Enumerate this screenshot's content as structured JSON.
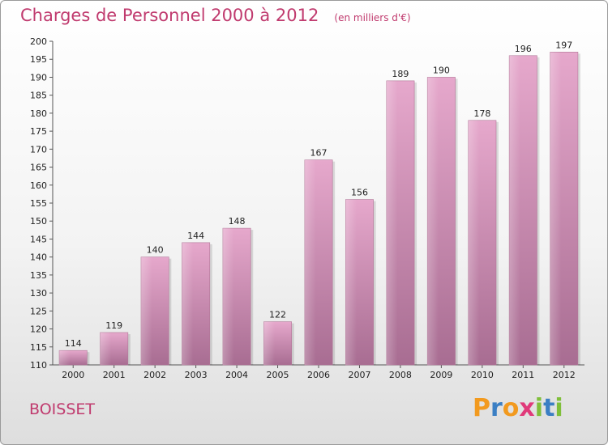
{
  "chart_data": {
    "type": "bar",
    "title": "Charges de Personnel 2000 à 2012",
    "subtitle": "(en milliers d'€)",
    "categories": [
      "2000",
      "2001",
      "2002",
      "2003",
      "2004",
      "2005",
      "2006",
      "2007",
      "2008",
      "2009",
      "2010",
      "2011",
      "2012"
    ],
    "values": [
      114,
      119,
      140,
      144,
      148,
      122,
      167,
      156,
      189,
      190,
      178,
      196,
      197
    ],
    "ylim": [
      110,
      200
    ],
    "ytick_step": 5,
    "grid": false,
    "bar_color": "#d98fb7",
    "xlabel": "",
    "ylabel": ""
  },
  "commune": "BOISSET",
  "logo": {
    "letters": [
      "P",
      "r",
      "o",
      "x",
      "i",
      "t",
      "i"
    ],
    "colors": [
      "#f29a1f",
      "#3b7fc4",
      "#f29a1f",
      "#e03a7a",
      "#7fbf3a",
      "#3b7fc4",
      "#7fbf3a"
    ]
  }
}
